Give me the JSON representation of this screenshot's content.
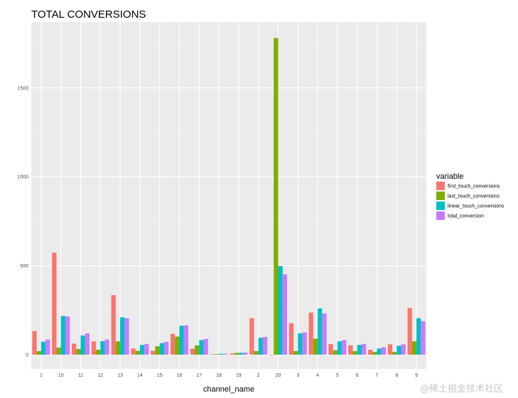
{
  "watermark": "@稀土掘金技术社区",
  "chart_data": {
    "type": "bar",
    "title": "TOTAL CONVERSIONS",
    "xlabel": "channel_name",
    "ylabel": "",
    "ylim": [
      0,
      1800
    ],
    "yticks": [
      0,
      500,
      1000,
      1500
    ],
    "grid": true,
    "legend_position": "right",
    "legend_title": "variable",
    "categories": [
      "1",
      "10",
      "11",
      "12",
      "13",
      "14",
      "15",
      "16",
      "17",
      "18",
      "19",
      "2",
      "20",
      "3",
      "4",
      "5",
      "6",
      "7",
      "8",
      "9"
    ],
    "series": [
      {
        "name": "first_touch_conversions",
        "color": "#F8766D",
        "values": [
          133,
          573,
          62,
          75,
          335,
          35,
          22,
          117,
          33,
          3,
          7,
          205,
          0,
          177,
          237,
          60,
          53,
          28,
          58,
          262
        ]
      },
      {
        "name": "last_touch_conversions",
        "color": "#7CAE00",
        "values": [
          20,
          40,
          32,
          28,
          75,
          22,
          47,
          102,
          52,
          3,
          10,
          20,
          1780,
          20,
          90,
          25,
          20,
          15,
          15,
          75
        ]
      },
      {
        "name": "linear_touch_conversions",
        "color": "#00BFC4",
        "values": [
          73,
          217,
          108,
          76,
          210,
          55,
          65,
          163,
          82,
          5,
          10,
          95,
          498,
          120,
          260,
          75,
          55,
          35,
          50,
          205
        ]
      },
      {
        "name": "total_conversion",
        "color": "#C77CFF",
        "values": [
          85,
          215,
          120,
          85,
          205,
          60,
          72,
          165,
          88,
          5,
          12,
          100,
          452,
          125,
          232,
          82,
          60,
          42,
          58,
          188
        ]
      }
    ]
  }
}
